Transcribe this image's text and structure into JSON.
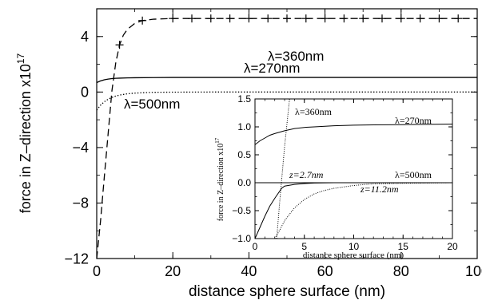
{
  "chart_data": [
    {
      "type": "line",
      "xlabel": "distance sphere surface (nm)",
      "ylabel": "force in  Z–direction x10",
      "ylabel_exponent": "17",
      "xlim": [
        0,
        100
      ],
      "ylim": [
        -12,
        6
      ],
      "xticks": [
        0,
        20,
        40,
        60,
        80,
        100
      ],
      "xtick_labels": [
        "0",
        "20",
        "40",
        "60",
        "80",
        "100"
      ],
      "yticks": [
        -12,
        -8,
        -4,
        0,
        4
      ],
      "ytick_labels": [
        "−12",
        "−8",
        "−4",
        "0",
        "4"
      ],
      "grid": false,
      "series": [
        {
          "name": "λ=360nm",
          "style": "dashed",
          "markers": "plus",
          "x": [
            0,
            1,
            2,
            3,
            4,
            5,
            6,
            7,
            8,
            10,
            12,
            15,
            20,
            25,
            30,
            40,
            50,
            60,
            70,
            80,
            90,
            100
          ],
          "y": [
            -12.0,
            -9.3,
            -6.1,
            -3.0,
            0.1,
            2.1,
            3.4,
            4.1,
            4.5,
            4.95,
            5.15,
            5.25,
            5.3,
            5.3,
            5.3,
            5.3,
            5.3,
            5.3,
            5.3,
            5.3,
            5.3,
            5.3
          ],
          "marker_x": [
            6,
            12,
            20,
            25,
            30,
            35,
            40,
            45,
            50,
            55,
            60,
            65,
            70,
            75,
            80,
            85,
            90,
            95
          ]
        },
        {
          "name": "λ=270nm",
          "style": "solid",
          "x": [
            0,
            1,
            2,
            3,
            4,
            5,
            6,
            8,
            10,
            15,
            20,
            40,
            60,
            80,
            100
          ],
          "y": [
            0.68,
            0.8,
            0.88,
            0.93,
            0.97,
            0.99,
            1.0,
            1.02,
            1.03,
            1.04,
            1.05,
            1.05,
            1.05,
            1.05,
            1.05
          ]
        },
        {
          "name": "λ=500nm",
          "style": "dotted",
          "x": [
            0,
            1,
            2,
            3,
            4,
            5,
            6,
            8,
            10,
            12,
            15,
            20,
            30,
            40,
            60,
            80,
            100
          ],
          "y": [
            -1.3,
            -0.95,
            -0.7,
            -0.52,
            -0.39,
            -0.29,
            -0.22,
            -0.13,
            -0.08,
            -0.05,
            -0.02,
            -0.01,
            0.0,
            0.0,
            0.0,
            0.0,
            0.0
          ]
        }
      ],
      "annotations": [
        "λ=360nm",
        "λ=270nm",
        "λ=500nm"
      ]
    },
    {
      "type": "line",
      "inset": true,
      "xlabel": "distance sphere surface (nm)",
      "ylabel": "force in  Z–direction x10",
      "ylabel_exponent": "17",
      "xlim": [
        0,
        20
      ],
      "ylim": [
        -1.0,
        1.5
      ],
      "xticks": [
        0,
        5,
        10,
        15,
        20
      ],
      "xtick_labels": [
        "0",
        "5",
        "10",
        "15",
        "20"
      ],
      "yticks": [
        -1.0,
        -0.5,
        0.0,
        0.5,
        1.0,
        1.5
      ],
      "ytick_labels": [
        "−1.0",
        "−0.5",
        "0.0",
        "0.5",
        "1.0",
        "1.5"
      ],
      "grid": false,
      "series": [
        {
          "name": "λ=270nm",
          "style": "solid",
          "x": [
            0,
            0.5,
            1,
            1.5,
            2,
            3,
            4,
            5,
            6,
            8,
            10,
            12,
            15,
            20
          ],
          "y": [
            0.68,
            0.75,
            0.8,
            0.85,
            0.88,
            0.93,
            0.97,
            0.99,
            1.0,
            1.02,
            1.03,
            1.035,
            1.04,
            1.05
          ]
        },
        {
          "name": "λ=360nm",
          "style": "dotted",
          "x": [
            2.2,
            2.5,
            3.0,
            3.5
          ],
          "y": [
            -1.0,
            -0.35,
            0.65,
            1.5
          ]
        },
        {
          "name": "λ=500nm",
          "style": "dotted",
          "x": [
            2.0,
            2.5,
            3,
            4,
            5,
            6,
            7,
            8,
            10,
            11.2,
            12,
            15,
            20
          ],
          "y": [
            -1.0,
            -0.85,
            -0.68,
            -0.45,
            -0.3,
            -0.2,
            -0.14,
            -0.1,
            -0.05,
            -0.03,
            -0.02,
            -0.01,
            0.0
          ]
        },
        {
          "name": "λ=500nm",
          "style": "solid",
          "x": [
            0,
            0.5,
            1,
            1.5,
            2,
            2.7,
            3,
            4,
            5,
            6,
            8,
            10
          ],
          "y": [
            -1.0,
            -0.8,
            -0.6,
            -0.42,
            -0.28,
            -0.1,
            -0.06,
            -0.03,
            -0.015,
            -0.005,
            0.0,
            0.0
          ]
        }
      ],
      "annotations": [
        "λ=360nm",
        "λ=270nm",
        "λ=500nm",
        "z=2.7nm",
        "z=11.2nm"
      ]
    }
  ]
}
